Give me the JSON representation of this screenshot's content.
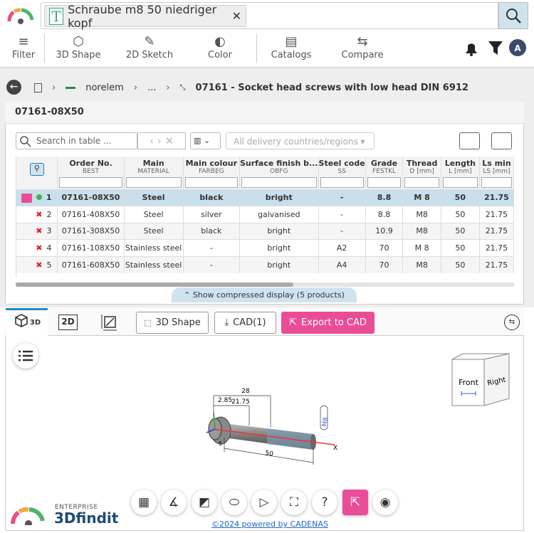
{
  "search": {
    "query": "Schraube m8 50 niedriger kopf"
  },
  "toolbar": [
    "Filter",
    "3D Shape",
    "2D Sketch",
    "Color",
    "Catalogs",
    "Compare"
  ],
  "breadcrumb": [
    "norelem",
    "...",
    "07161 - Socket head screws with low head DIN 6912"
  ],
  "panel_title": "07161-08X50",
  "table_controls": {
    "search_placeholder": "Search in table ...",
    "region": "All delivery countries/regions"
  },
  "table": {
    "columns": [
      {
        "label": "Order No.",
        "code": "BEST"
      },
      {
        "label": "Main",
        "code": "MATERIAL"
      },
      {
        "label": "Main colour",
        "code": "FARBEG"
      },
      {
        "label": "Surface finish b...",
        "code": "OBFG"
      },
      {
        "label": "Steel code",
        "code": "SS"
      },
      {
        "label": "Grade",
        "code": "FESTKL"
      },
      {
        "label": "Thread",
        "code": "D [mm]"
      },
      {
        "label": "Length",
        "code": "L [mm]"
      },
      {
        "label": "Ls min",
        "code": "LS [mm]"
      }
    ],
    "rows": [
      [
        "1",
        "07161-08X50",
        "Steel",
        "black",
        "bright",
        "-",
        "8.8",
        "M 8",
        "50",
        "21.75"
      ],
      [
        "2",
        "07161-408X50",
        "Steel",
        "silver",
        "galvanised",
        "-",
        "8.8",
        "M8",
        "50",
        "21.75"
      ],
      [
        "3",
        "07161-308X50",
        "Steel",
        "black",
        "bright",
        "-",
        "10.9",
        "M8",
        "50",
        "21.75"
      ],
      [
        "4",
        "07161-108X50",
        "Stainless steel",
        "-",
        "bright",
        "A2",
        "70",
        "M 8",
        "50",
        "21.75"
      ],
      [
        "5",
        "07161-608X50",
        "Stainless steel",
        "-",
        "bright",
        "A4",
        "70",
        "M8",
        "50",
        "21.75"
      ]
    ]
  },
  "compressed_toggle": "Show compressed display (5 products)",
  "viewer": {
    "tabs": [
      "3D",
      "2D"
    ],
    "buttons": [
      "3D Shape",
      "CAD(1)",
      "Export to CAD"
    ],
    "cube": [
      "Front",
      "Right"
    ],
    "dimensions": [
      "28",
      "21.75",
      "2.85",
      "5",
      "50",
      "M8",
      "X"
    ]
  },
  "footer": {
    "brand_top": "ENTERPRISE",
    "brand": "3Dfindit",
    "link": "©2024 powered by CADENAS"
  }
}
